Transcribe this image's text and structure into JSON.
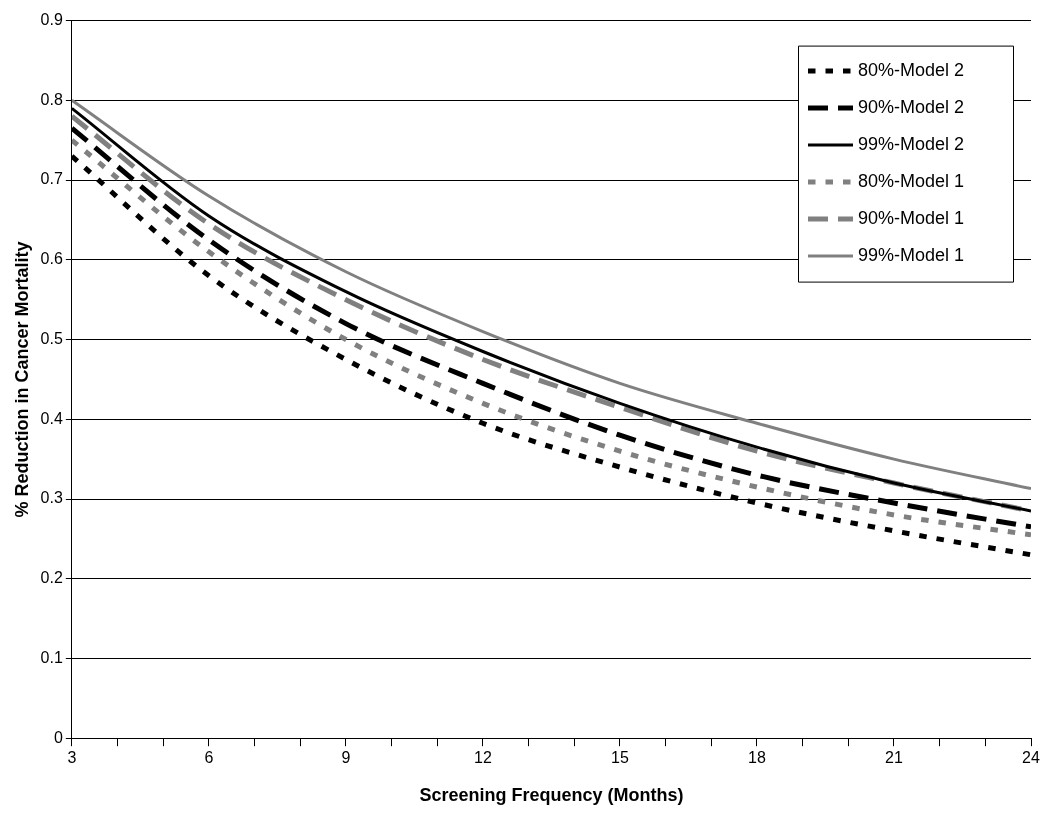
{
  "chart_data": {
    "type": "line",
    "xlabel": "Screening Frequency (Months)",
    "ylabel": "% Reduction in Cancer Mortality",
    "x": [
      3,
      6,
      9,
      12,
      15,
      18,
      21,
      24
    ],
    "series": [
      {
        "name": "80%-Model 2",
        "color": "#000000",
        "line_style": "dotted",
        "values": [
          0.73,
          0.58,
          0.475,
          0.395,
          0.34,
          0.295,
          0.26,
          0.23
        ]
      },
      {
        "name": "90%-Model 2",
        "color": "#000000",
        "line_style": "dashed",
        "values": [
          0.765,
          0.625,
          0.52,
          0.445,
          0.38,
          0.33,
          0.295,
          0.265
        ]
      },
      {
        "name": "99%-Model 2",
        "color": "#000000",
        "line_style": "solid",
        "values": [
          0.79,
          0.655,
          0.56,
          0.485,
          0.42,
          0.365,
          0.32,
          0.285
        ]
      },
      {
        "name": "80%-Model 1",
        "color": "#808080",
        "line_style": "dotted",
        "values": [
          0.75,
          0.61,
          0.5,
          0.42,
          0.36,
          0.315,
          0.28,
          0.255
        ]
      },
      {
        "name": "90%-Model 1",
        "color": "#808080",
        "line_style": "dashed",
        "values": [
          0.78,
          0.645,
          0.55,
          0.475,
          0.415,
          0.36,
          0.32,
          0.285
        ]
      },
      {
        "name": "99%-Model 1",
        "color": "#808080",
        "line_style": "solid",
        "values": [
          0.8,
          0.68,
          0.585,
          0.51,
          0.445,
          0.395,
          0.35,
          0.313
        ]
      }
    ],
    "xlim": [
      3,
      24
    ],
    "xticks": [
      3,
      {
        "value": 4,
        "label": null
      },
      {
        "value": 5,
        "label": null
      },
      6,
      {
        "value": 7,
        "label": null
      },
      {
        "value": 8,
        "label": null
      },
      9,
      {
        "value": 10,
        "label": null
      },
      {
        "value": 11,
        "label": null
      },
      12,
      {
        "value": 13,
        "label": null
      },
      {
        "value": 14,
        "label": null
      },
      15,
      {
        "value": 16,
        "label": null
      },
      {
        "value": 17,
        "label": null
      },
      18,
      {
        "value": 19,
        "label": null
      },
      {
        "value": 20,
        "label": null
      },
      21,
      {
        "value": 22,
        "label": null
      },
      {
        "value": 23,
        "label": null
      },
      24
    ],
    "ylim": [
      0,
      0.9
    ],
    "yticks": [
      0,
      0.1,
      0.2,
      0.3,
      0.4,
      0.5,
      0.6,
      0.7,
      0.8,
      0.9
    ],
    "grid": "y",
    "legend": "top right",
    "marker": "none"
  }
}
